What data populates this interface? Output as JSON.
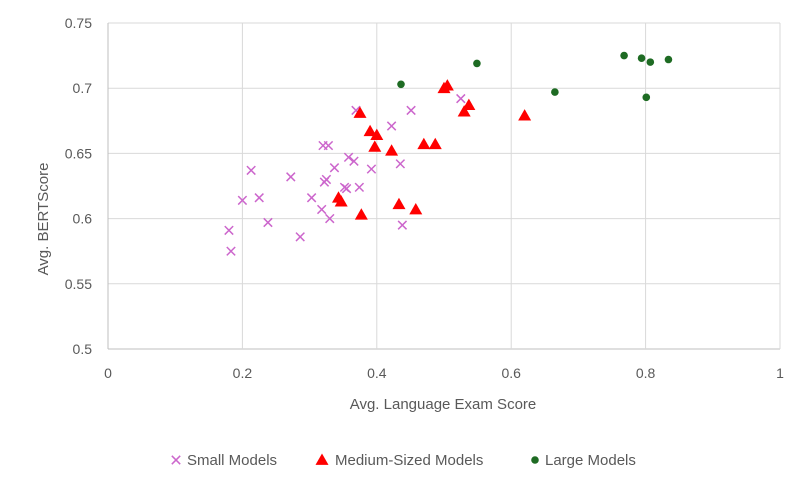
{
  "chart_data": {
    "type": "scatter",
    "title": "",
    "xlabel": "Avg. Language Exam Score",
    "ylabel": "Avg. BERTScore",
    "xlim": [
      0,
      1
    ],
    "ylim": [
      0.5,
      0.75
    ],
    "x_ticks": [
      "0",
      "0.2",
      "0.4",
      "0.6",
      "0.8",
      "1"
    ],
    "y_ticks": [
      "0.5",
      "0.55",
      "0.6",
      "0.65",
      "0.7",
      "0.75"
    ],
    "grid": true,
    "legend_position": "bottom",
    "series": [
      {
        "name": "Small Models",
        "marker": "x",
        "color": "#cc66cc",
        "points": [
          [
            0.18,
            0.591
          ],
          [
            0.183,
            0.575
          ],
          [
            0.2,
            0.614
          ],
          [
            0.213,
            0.637
          ],
          [
            0.225,
            0.616
          ],
          [
            0.238,
            0.597
          ],
          [
            0.272,
            0.632
          ],
          [
            0.286,
            0.586
          ],
          [
            0.303,
            0.616
          ],
          [
            0.318,
            0.607
          ],
          [
            0.322,
            0.628
          ],
          [
            0.325,
            0.63
          ],
          [
            0.32,
            0.656
          ],
          [
            0.328,
            0.656
          ],
          [
            0.33,
            0.6
          ],
          [
            0.337,
            0.639
          ],
          [
            0.352,
            0.624
          ],
          [
            0.355,
            0.623
          ],
          [
            0.358,
            0.647
          ],
          [
            0.366,
            0.644
          ],
          [
            0.369,
            0.683
          ],
          [
            0.374,
            0.624
          ],
          [
            0.392,
            0.638
          ],
          [
            0.422,
            0.671
          ],
          [
            0.435,
            0.642
          ],
          [
            0.438,
            0.595
          ],
          [
            0.451,
            0.683
          ],
          [
            0.525,
            0.692
          ]
        ]
      },
      {
        "name": "Medium-Sized Models",
        "marker": "triangle",
        "color": "#ff0000",
        "points": [
          [
            0.343,
            0.616
          ],
          [
            0.347,
            0.613
          ],
          [
            0.375,
            0.681
          ],
          [
            0.377,
            0.603
          ],
          [
            0.39,
            0.667
          ],
          [
            0.397,
            0.655
          ],
          [
            0.4,
            0.664
          ],
          [
            0.422,
            0.652
          ],
          [
            0.433,
            0.611
          ],
          [
            0.458,
            0.607
          ],
          [
            0.47,
            0.657
          ],
          [
            0.487,
            0.657
          ],
          [
            0.5,
            0.7
          ],
          [
            0.505,
            0.702
          ],
          [
            0.53,
            0.682
          ],
          [
            0.537,
            0.687
          ],
          [
            0.62,
            0.679
          ]
        ]
      },
      {
        "name": "Large Models",
        "marker": "circle",
        "color": "#1e6b23",
        "points": [
          [
            0.436,
            0.703
          ],
          [
            0.549,
            0.719
          ],
          [
            0.665,
            0.697
          ],
          [
            0.768,
            0.725
          ],
          [
            0.794,
            0.723
          ],
          [
            0.801,
            0.693
          ],
          [
            0.807,
            0.72
          ],
          [
            0.834,
            0.722
          ]
        ]
      }
    ]
  }
}
